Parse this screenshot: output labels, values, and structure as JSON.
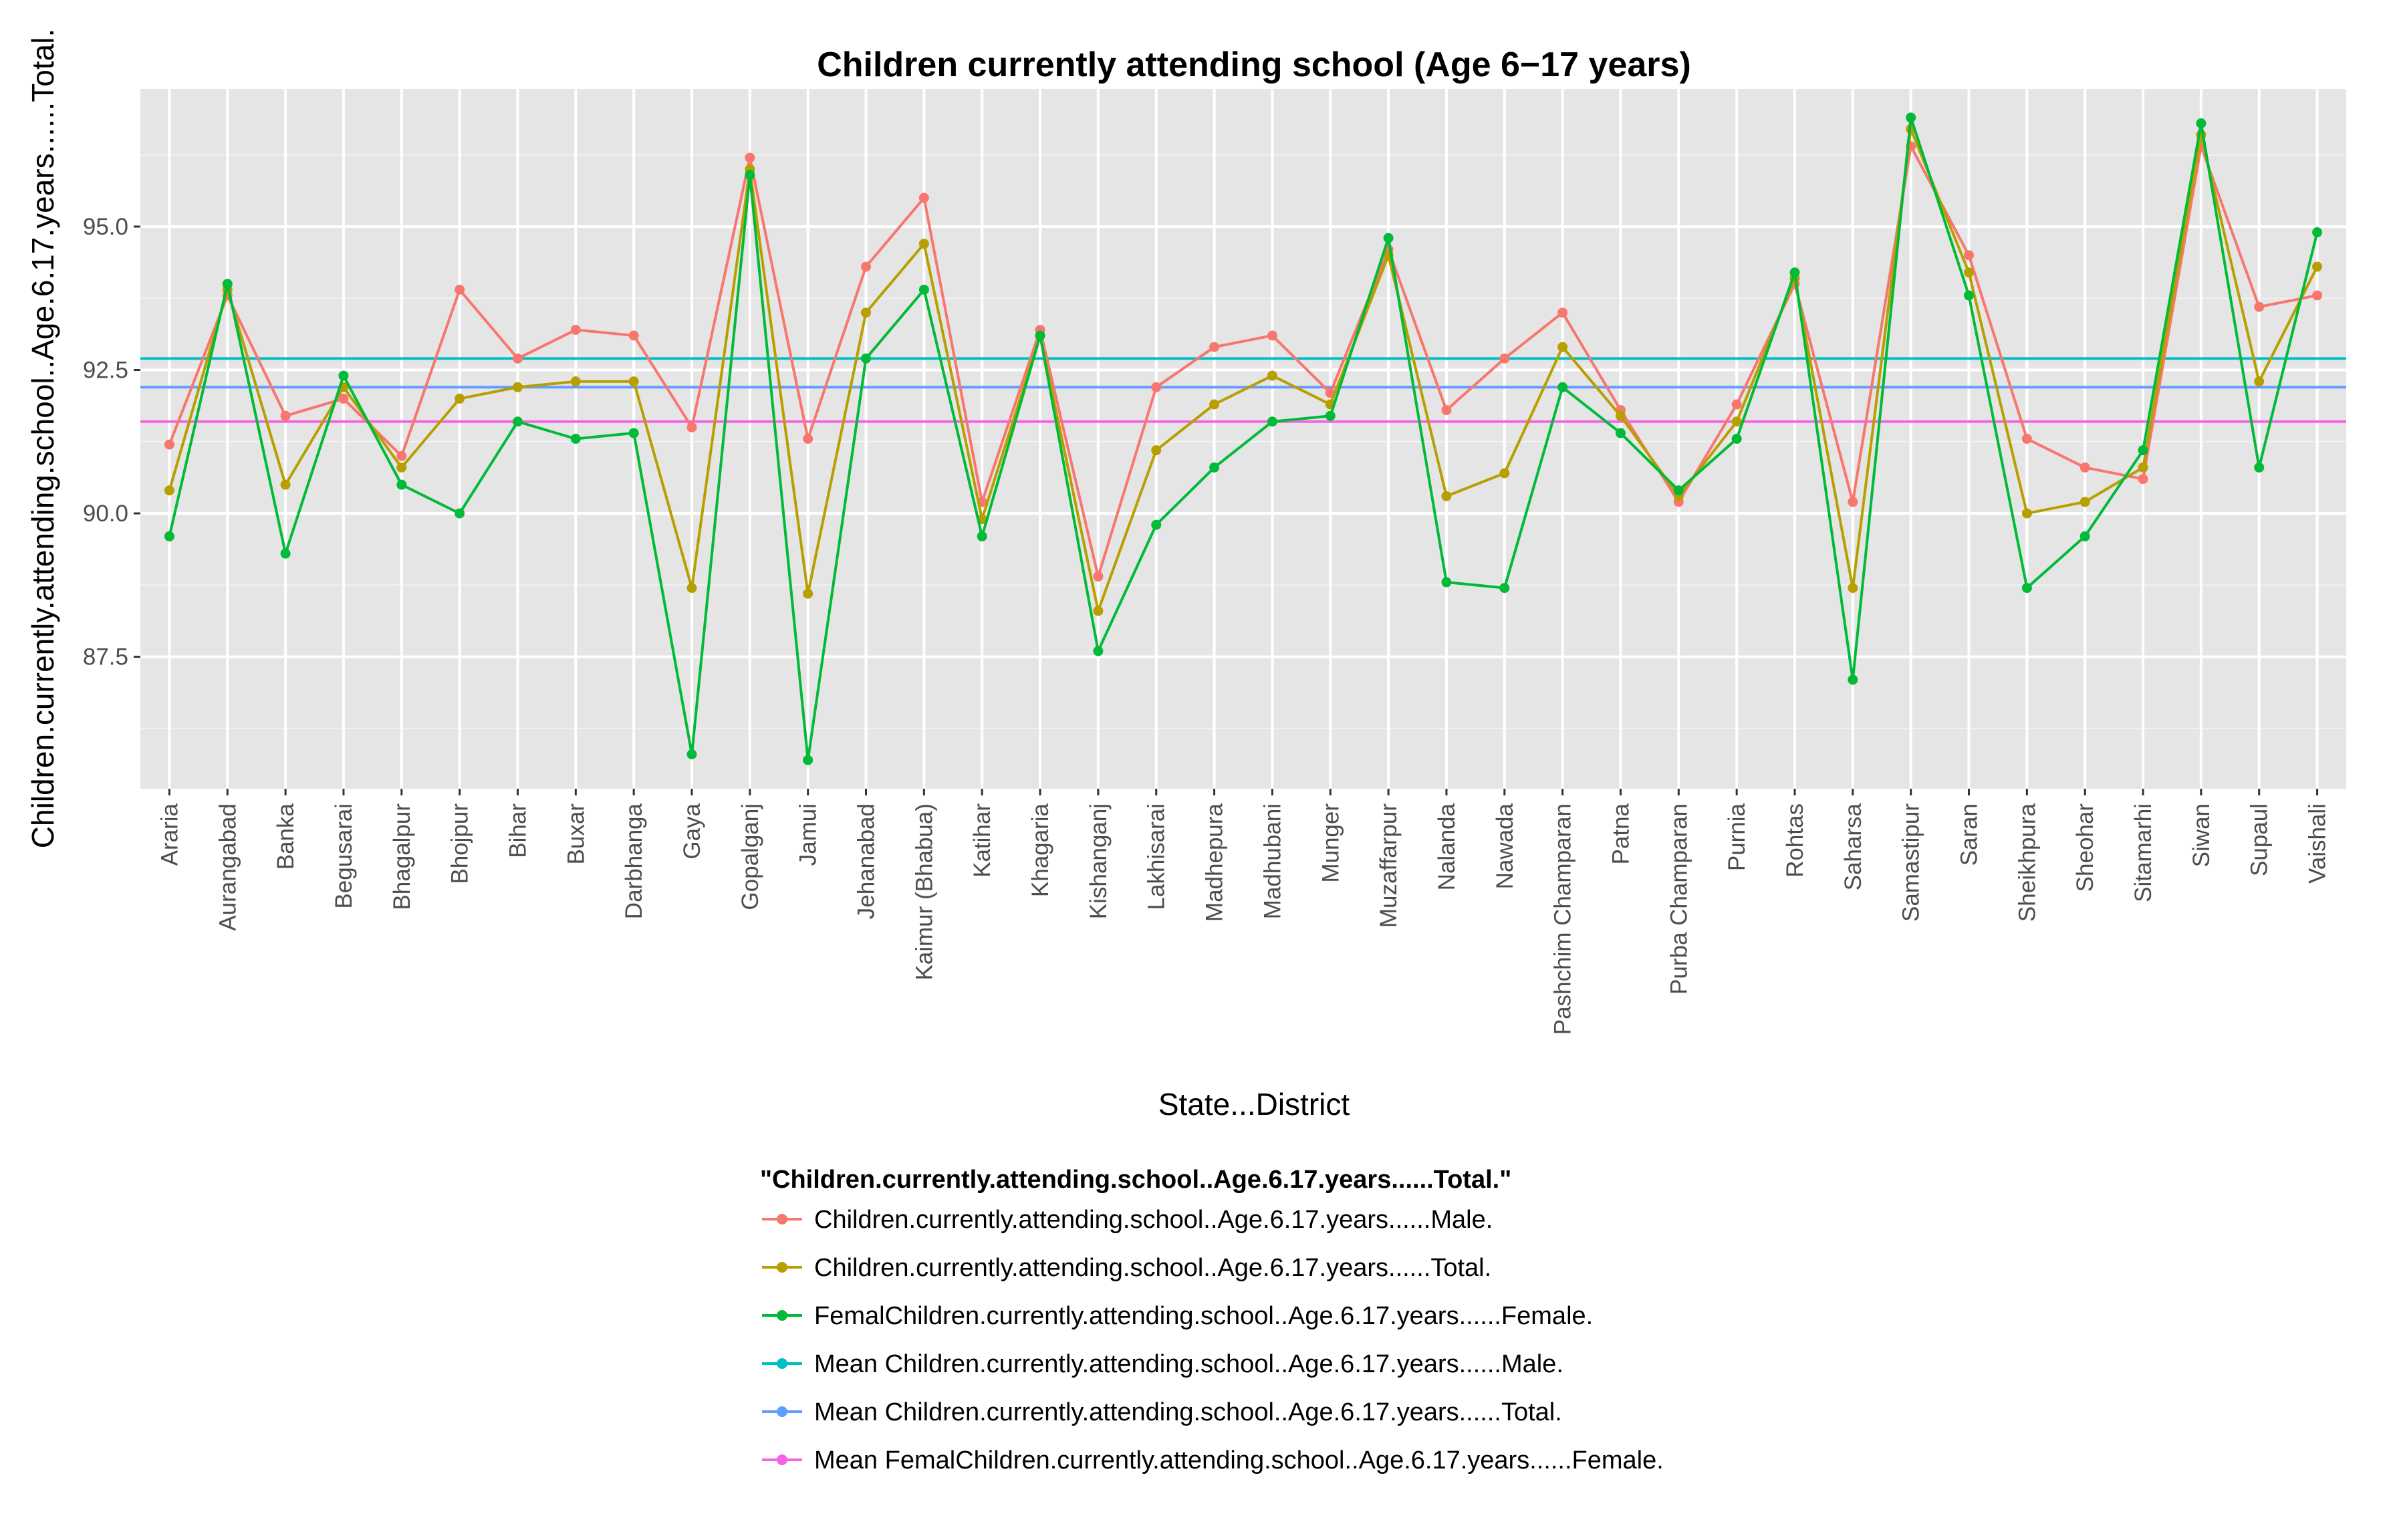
{
  "chart_data": {
    "type": "line",
    "title": "Children currently attending school (Age 6−17 years)",
    "xlabel": "State...District",
    "ylabel": "Children.currently.attending.school..Age.6.17.years......Total.",
    "ylim": [
      85.2,
      97.4
    ],
    "yticks": [
      87.5,
      90.0,
      92.5,
      95.0
    ],
    "ytick_labels": [
      "87.5",
      "90.0",
      "92.5",
      "95.0"
    ],
    "grid": true,
    "legend_position": "bottom",
    "legend_title": "\"Children.currently.attending.school..Age.6.17.years......Total.\"",
    "categories": [
      "Araria",
      "Aurangabad",
      "Banka",
      "Begusarai",
      "Bhagalpur",
      "Bhojpur",
      "Bihar",
      "Buxar",
      "Darbhanga",
      "Gaya",
      "Gopalganj",
      "Jamui",
      "Jehanabad",
      "Kaimur (Bhabua)",
      "Katihar",
      "Khagaria",
      "Kishanganj",
      "Lakhisarai",
      "Madhepura",
      "Madhubani",
      "Munger",
      "Muzaffarpur",
      "Nalanda",
      "Nawada",
      "Pashchim Champaran",
      "Patna",
      "Purba Champaran",
      "Purnia",
      "Rohtas",
      "Saharsa",
      "Samastipur",
      "Saran",
      "Sheikhpura",
      "Sheohar",
      "Sitamarhi",
      "Siwan",
      "Supaul",
      "Vaishali"
    ],
    "series": [
      {
        "name": "Children.currently.attending.school..Age.6.17.years......Male.",
        "color": "#F8766D",
        "values": [
          91.2,
          93.8,
          91.7,
          92.0,
          91.0,
          93.9,
          92.7,
          93.2,
          93.1,
          91.5,
          96.2,
          91.3,
          94.3,
          95.5,
          90.2,
          93.2,
          88.9,
          92.2,
          92.9,
          93.1,
          92.1,
          94.6,
          91.8,
          92.7,
          93.5,
          91.8,
          90.2,
          91.9,
          94.0,
          90.2,
          96.4,
          94.5,
          91.3,
          90.8,
          90.6,
          96.4,
          93.6,
          93.8
        ]
      },
      {
        "name": "Children.currently.attending.school..Age.6.17.years......Total.",
        "color": "#B79F00",
        "values": [
          90.4,
          93.9,
          90.5,
          92.2,
          90.8,
          92.0,
          92.2,
          92.3,
          92.3,
          88.7,
          96.0,
          88.6,
          93.5,
          94.7,
          89.9,
          93.1,
          88.3,
          91.1,
          91.9,
          92.4,
          91.9,
          94.5,
          90.3,
          90.7,
          92.9,
          91.7,
          90.3,
          91.6,
          94.1,
          88.7,
          96.7,
          94.2,
          90.0,
          90.2,
          90.8,
          96.6,
          92.3,
          94.3
        ]
      },
      {
        "name": "FemalChildren.currently.attending.school..Age.6.17.years......Female.",
        "color": "#00BA38",
        "values": [
          89.6,
          94.0,
          89.3,
          92.4,
          90.5,
          90.0,
          91.6,
          91.3,
          91.4,
          85.8,
          95.9,
          85.7,
          92.7,
          93.9,
          89.6,
          93.1,
          87.6,
          89.8,
          90.8,
          91.6,
          91.7,
          94.8,
          88.8,
          88.7,
          92.2,
          91.4,
          90.4,
          91.3,
          94.2,
          87.1,
          96.9,
          93.8,
          88.7,
          89.6,
          91.1,
          96.8,
          90.8,
          94.9
        ]
      }
    ],
    "reference_lines": [
      {
        "name": "Mean Children.currently.attending.school..Age.6.17.years......Male.",
        "color": "#00BFC4",
        "value": 92.7
      },
      {
        "name": "Mean Children.currently.attending.school..Age.6.17.years......Total.",
        "color": "#619CFF",
        "value": 92.2
      },
      {
        "name": "Mean FemalChildren.currently.attending.school..Age.6.17.years......Female.",
        "color": "#F564E3",
        "value": 91.6
      }
    ]
  }
}
